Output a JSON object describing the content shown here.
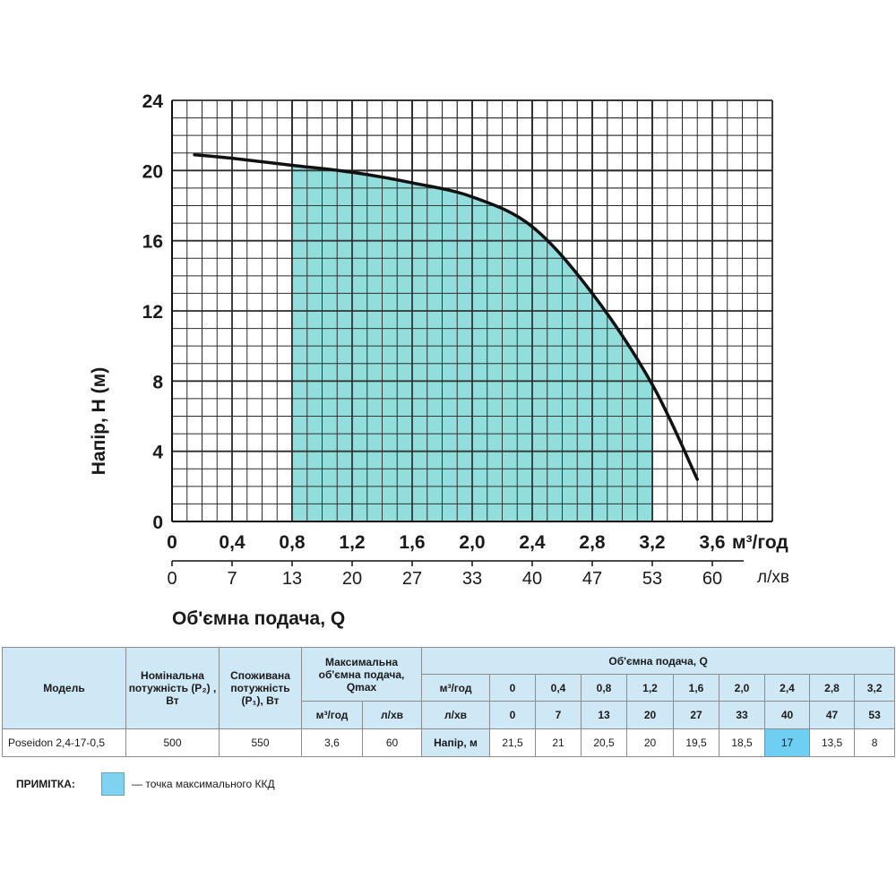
{
  "chart_data": {
    "type": "area",
    "ylabel": "Напір, Н (м)",
    "xlabel": "Об'ємна подача, Q",
    "x_unit_m3": "м³/год",
    "x_unit_lmin": "л/хв",
    "xlim": [
      0,
      4.0
    ],
    "ylim": [
      0,
      24
    ],
    "y_ticks": [
      "0",
      "4",
      "8",
      "12",
      "16",
      "20",
      "24"
    ],
    "x_ticks_m3": [
      "0",
      "0,4",
      "0,8",
      "1,2",
      "1,6",
      "2,0",
      "2,4",
      "2,8",
      "3,2",
      "3,6"
    ],
    "x_ticks_lmin": [
      "0",
      "7",
      "13",
      "20",
      "27",
      "33",
      "40",
      "47",
      "53",
      "60"
    ],
    "grid": true,
    "series": [
      {
        "x": [
          0.15,
          0.4,
          0.8,
          1.2,
          1.6,
          2.0,
          2.4,
          2.8,
          3.2,
          3.5
        ],
        "y": [
          20.9,
          20.7,
          20.3,
          19.9,
          19.3,
          18.5,
          16.8,
          13.0,
          7.8,
          2.4
        ]
      }
    ],
    "shaded_range": [
      0.8,
      3.2
    ],
    "colors": {
      "curve": "#111111",
      "fill": "#7fd8d6",
      "grid": "#2b2b2b"
    }
  },
  "table": {
    "headers": {
      "model": "Модель",
      "nominal_power": "Номінальна потужність (P₂) , Вт",
      "consumed_power": "Споживана потужність (P₁), Вт",
      "max_flow": "Максимальна об'ємна подача, Qmax",
      "max_flow_m3": "м³/год",
      "max_flow_lmin": "л/хв",
      "flow_title": "Об'ємна подача, Q",
      "flow_m3_label": "м³/год",
      "flow_lmin_label": "л/хв",
      "flow_m3": [
        "0",
        "0,4",
        "0,8",
        "1,2",
        "1,6",
        "2,0",
        "2,4",
        "2,8",
        "3,2"
      ],
      "flow_lmin": [
        "0",
        "7",
        "13",
        "20",
        "27",
        "33",
        "40",
        "47",
        "53"
      ]
    },
    "row": {
      "model": "Poseidon 2,4-17-0,5",
      "nominal_power": "500",
      "consumed_power": "550",
      "max_flow_m3": "3,6",
      "max_flow_lmin": "60",
      "head_label": "Напір, м",
      "head": [
        "21,5",
        "21",
        "20,5",
        "20",
        "19,5",
        "18,5",
        "17",
        "13,5",
        "8"
      ]
    },
    "highlight_index": 6,
    "highlight_color": "#6ecff2"
  },
  "note": {
    "label": "ПРИМІТКА:",
    "text": "— точка максимального ККД"
  }
}
